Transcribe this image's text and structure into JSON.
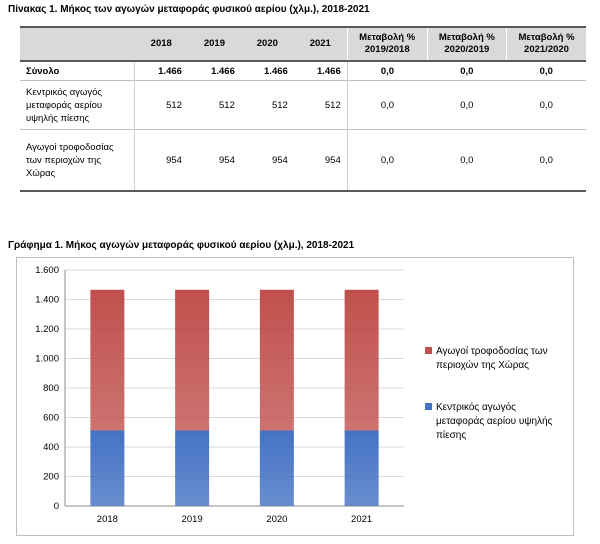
{
  "table": {
    "caption": "Πίνακας 1. Μήκος των αγωγών μεταφοράς φυσικού αερίου (χλμ.), 2018-2021",
    "headers": [
      "",
      "2018",
      "2019",
      "2020",
      "2021",
      "Μεταβολή % 2019/2018",
      "Μεταβολή % 2020/2019",
      "Μεταβολή % 2021/2020"
    ],
    "rows": [
      {
        "label": "Σύνολο",
        "values": [
          "1.466",
          "1.466",
          "1.466",
          "1.466"
        ],
        "changes": [
          "0,0",
          "0,0",
          "0,0"
        ]
      },
      {
        "label": "Κεντρικός αγωγός μεταφοράς αερίου υψηλής πίεσης",
        "values": [
          "512",
          "512",
          "512",
          "512"
        ],
        "changes": [
          "0,0",
          "0,0",
          "0,0"
        ]
      },
      {
        "label": "Αγωγοί τροφοδοσίας των περιοχών της Χώρας",
        "values": [
          "954",
          "954",
          "954",
          "954"
        ],
        "changes": [
          "0,0",
          "0,0",
          "0,0"
        ]
      }
    ]
  },
  "chart": {
    "caption": "Γράφημα 1. Μήκος αγωγών μεταφοράς φυσικού αερίου (χλμ.), 2018-2021"
  },
  "chart_data": {
    "type": "bar",
    "stacked": true,
    "categories": [
      "2018",
      "2019",
      "2020",
      "2021"
    ],
    "series": [
      {
        "name": "Κεντρικός αγωγός μεταφοράς αερίου υψηλής πίεσης",
        "values": [
          512,
          512,
          512,
          512
        ],
        "color": "#4472c4"
      },
      {
        "name": "Αγωγοί τροφοδοσίας των περιοχών της Χώρας",
        "values": [
          954,
          954,
          954,
          954
        ],
        "color": "#c0504d"
      }
    ],
    "ylim": [
      0,
      1600
    ],
    "yticks": [
      0,
      200,
      400,
      600,
      800,
      1000,
      1200,
      1400,
      1600
    ],
    "ytick_labels": [
      "0",
      "200",
      "400",
      "600",
      "800",
      "1.000",
      "1.200",
      "1.400",
      "1.600"
    ],
    "grid": true,
    "legend": "right"
  }
}
